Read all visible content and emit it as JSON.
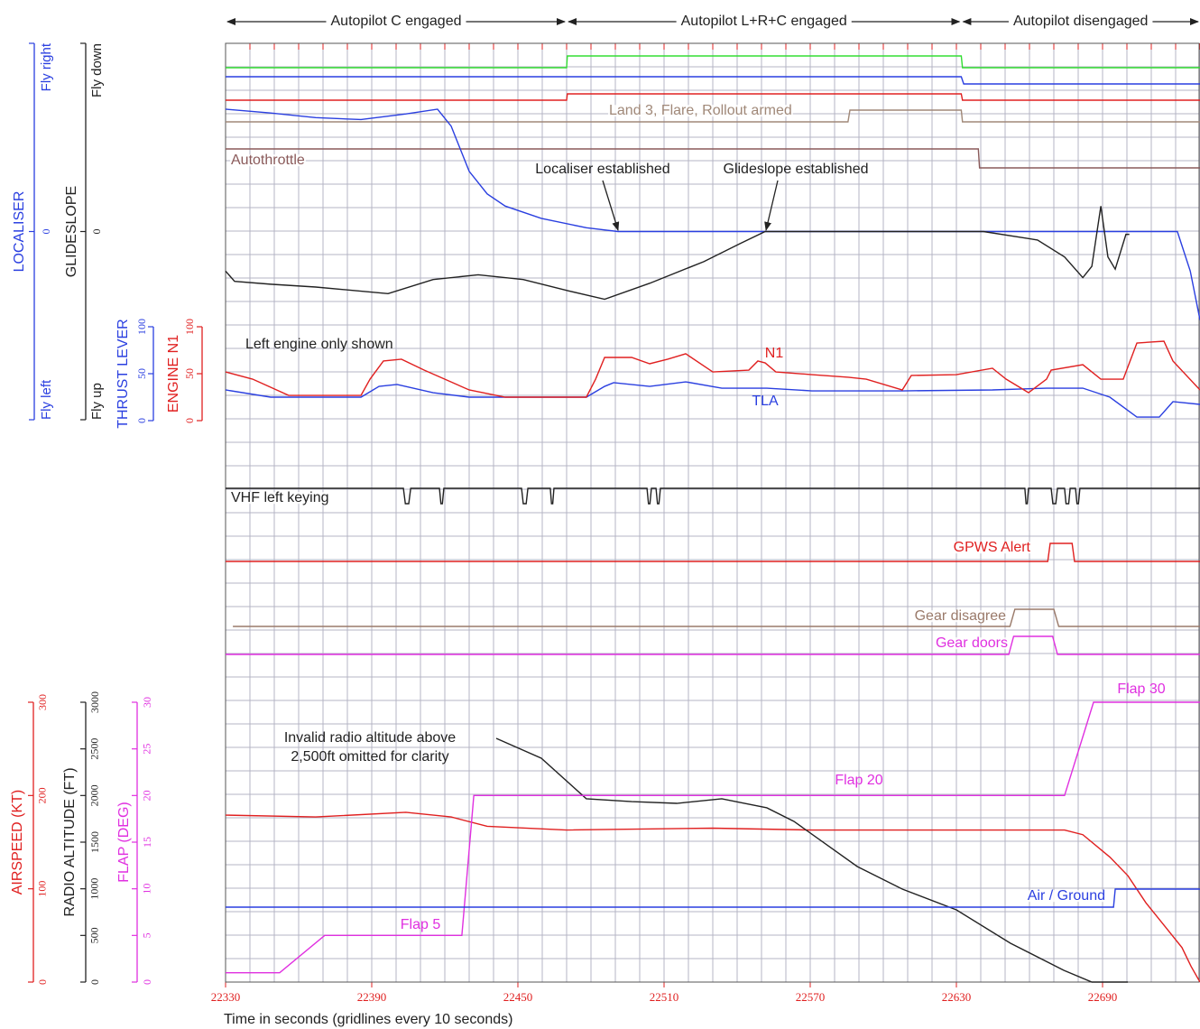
{
  "chart_data": {
    "type": "line",
    "xlabel": "Time in seconds (gridlines every 10 seconds)",
    "xlim": [
      22330,
      22730
    ],
    "xticks": [
      22330,
      22390,
      22450,
      22510,
      22570,
      22630,
      22690
    ],
    "phases": [
      {
        "label": "Autopilot C engaged",
        "start": 22330,
        "end": 22470
      },
      {
        "label": "Autopilot L+R+C engaged",
        "start": 22470,
        "end": 22632
      },
      {
        "label": "Autopilot disengaged",
        "start": 22632,
        "end": 22730
      }
    ],
    "annotations": [
      "Localiser established",
      "Glideslope established",
      "Left engine only shown",
      "Invalid radio altitude above",
      "2,500ft omitted for clarity"
    ],
    "series": [
      {
        "color": "#33dd33",
        "x": [
          22330,
          22470,
          22470.3,
          22632,
          22632.5,
          22730
        ],
        "values": [
          0,
          0,
          1,
          1,
          0,
          0
        ]
      },
      {
        "color": "#2a3fe0",
        "x": [
          22330,
          22632,
          22633,
          22730
        ],
        "values": [
          1,
          1,
          0,
          0
        ]
      },
      {
        "color": "#e02020",
        "x": [
          22330,
          22470,
          22470.3,
          22632,
          22632.5,
          22730
        ],
        "values": [
          0,
          0,
          1,
          1,
          0,
          0
        ]
      },
      {
        "name": "Land 3, Flare, Rollout armed",
        "color": "#a08878",
        "x": [
          22330,
          22585.5,
          22586.3,
          22632,
          22632.5,
          22730
        ],
        "values": [
          0,
          0,
          1,
          1,
          0,
          0
        ]
      },
      {
        "name": "Autothrottle",
        "color": "#8a5a5a",
        "x": [
          22330,
          22639,
          22639.5,
          22730
        ],
        "values": [
          1,
          1,
          0,
          0
        ]
      },
      {
        "name": "LOCALISER",
        "color": "#2a3fe0",
        "ylim": [
          -2,
          2
        ],
        "yticks": [
          {
            "value": -2,
            "label": "Fly left"
          },
          0,
          {
            "value": 2,
            "label": "Fly right"
          }
        ],
        "x": [
          22330,
          22348.5,
          22367,
          22385.6,
          22404.1,
          22417,
          22422.6,
          22430,
          22437.4,
          22444.8,
          22459.6,
          22478.1,
          22491.1,
          22720.7,
          22726,
          22730
        ],
        "values": [
          1.3,
          1.26,
          1.21,
          1.19,
          1.25,
          1.3,
          1.12,
          0.64,
          0.4,
          0.27,
          0.14,
          0.04,
          0,
          0,
          -0.42,
          -0.94
        ]
      },
      {
        "name": "GLIDESLOPE",
        "color": "#222222",
        "ylim": [
          -2,
          2
        ],
        "yticks": [
          {
            "value": -2,
            "label": "Fly up"
          },
          0,
          {
            "value": 2,
            "label": "Fly down"
          }
        ],
        "x": [
          22330,
          22333.7,
          22348.5,
          22367,
          22396.7,
          22415.2,
          22433.7,
          22452.2,
          22470.7,
          22485.6,
          22504.1,
          22526.3,
          22541.1,
          22551.5,
          22641.1,
          22663.3,
          22674.4,
          22681.9,
          22685.6,
          22689.3,
          22692.2,
          22695.2,
          22699.6,
          22701
        ],
        "values": [
          -0.42,
          -0.53,
          -0.56,
          -0.59,
          -0.66,
          -0.51,
          -0.46,
          -0.51,
          -0.63,
          -0.72,
          -0.55,
          -0.32,
          -0.13,
          0,
          0,
          -0.09,
          -0.27,
          -0.49,
          -0.37,
          0.27,
          -0.27,
          -0.4,
          -0.03,
          -0.03
        ]
      },
      {
        "name": "THRUST LEVER",
        "labels": [
          "TLA"
        ],
        "color": "#2a3fe0",
        "ylim": [
          0,
          100
        ],
        "yticks": [
          0,
          50,
          100
        ],
        "x": [
          22330,
          22348.5,
          22385.6,
          22393,
          22400.4,
          22415.2,
          22430,
          22478.1,
          22485.6,
          22489.3,
          22504.1,
          22518.9,
          22533.7,
          22552.2,
          22570.7,
          22607.8,
          22644.8,
          22667,
          22681.9,
          22693,
          22704.1,
          22713.3,
          22718.9,
          22730
        ],
        "values": [
          32.7,
          25,
          25,
          36.5,
          38.5,
          29.8,
          25,
          25,
          36.5,
          40.4,
          36.5,
          41.3,
          34.6,
          34.6,
          31.7,
          31.7,
          32.7,
          34.6,
          34.6,
          25,
          3.8,
          3.8,
          20.2,
          17.3
        ]
      },
      {
        "name": "ENGINE N1",
        "labels": [
          "N1"
        ],
        "color": "#e02020",
        "ylim": [
          0,
          100
        ],
        "yticks": [
          0,
          50,
          100
        ],
        "x": [
          22330,
          22341.1,
          22355.9,
          22385.6,
          22389.3,
          22394.8,
          22402.2,
          22411.5,
          22430,
          22444.8,
          22478.1,
          22481.9,
          22485.6,
          22496.7,
          22504.1,
          22511.5,
          22518.9,
          22530,
          22544.8,
          22548.5,
          22551.5,
          22555.9,
          22570.7,
          22585.6,
          22593,
          22607.8,
          22611.5,
          22630,
          22644.8,
          22650.4,
          22659.6,
          22667,
          22668.9,
          22681.9,
          22689.3,
          22698.5,
          22704.1,
          22715.2,
          22718.9,
          22730
        ],
        "values": [
          51.9,
          44.2,
          26.9,
          26.9,
          44.2,
          63.5,
          65.4,
          53.8,
          32.7,
          25,
          25,
          44.2,
          67.3,
          67.3,
          60.6,
          65.4,
          71.2,
          51.9,
          53.8,
          63.5,
          61.5,
          51.9,
          49,
          46.2,
          44.2,
          32.7,
          48.1,
          49,
          55.8,
          44.2,
          29.8,
          44.2,
          53.8,
          59.6,
          44.2,
          44.2,
          82.7,
          84.6,
          63.5,
          32.7
        ]
      },
      {
        "name": "VHF left keying",
        "color": "#222222",
        "x": [
          22330,
          22403,
          22403.8,
          22405.2,
          22406,
          22417.8,
          22418.4,
          22419,
          22419.6,
          22451.5,
          22452.2,
          22453.4,
          22454.1,
          22463.3,
          22463.8,
          22464.3,
          22464.8,
          22503,
          22503.6,
          22504.2,
          22504.8,
          22506.7,
          22507.3,
          22507.9,
          22508.5,
          22658.1,
          22658.6,
          22659.1,
          22659.6,
          22668.9,
          22669.6,
          22670.8,
          22671.5,
          22674.4,
          22675,
          22676.1,
          22676.7,
          22678.9,
          22679.5,
          22680.1,
          22680.7,
          22730
        ],
        "values": [
          1,
          1,
          0,
          0,
          1,
          1,
          0,
          0,
          1,
          1,
          0,
          0,
          1,
          1,
          0,
          0,
          1,
          1,
          0,
          0,
          1,
          1,
          0,
          0,
          1,
          1,
          0,
          0,
          1,
          1,
          0,
          0,
          1,
          1,
          0,
          0,
          1,
          1,
          0,
          0,
          1,
          1
        ]
      },
      {
        "name": "GPWS Alert",
        "color": "#e02020",
        "x": [
          22330,
          22667.5,
          22668.5,
          22677.5,
          22678.5,
          22730
        ],
        "values": [
          0,
          0,
          1,
          1,
          0,
          0
        ]
      },
      {
        "name": "Gear disagree",
        "color": "#9a7a6a",
        "x": [
          22333,
          22652,
          22654,
          22670,
          22672,
          22730
        ],
        "values": [
          0,
          0,
          1,
          1,
          0,
          0
        ]
      },
      {
        "name": "Gear doors",
        "color": "#e030e0",
        "x": [
          22330,
          22651.5,
          22653.5,
          22669.5,
          22671.5,
          22730
        ],
        "values": [
          0,
          0,
          1,
          1,
          0,
          0
        ]
      },
      {
        "name": "AIRSPEED (KT)",
        "color": "#e02020",
        "ylim": [
          0,
          300
        ],
        "yticks": [
          0,
          100,
          200,
          300
        ],
        "x": [
          22330,
          22367,
          22404,
          22422.6,
          22437.4,
          22470,
          22530,
          22570.7,
          22630,
          22674.4,
          22681.9,
          22693,
          22700.4,
          22707.8,
          22715.2,
          22722.6,
          22726.3,
          22730
        ],
        "values": [
          179,
          177,
          182,
          177,
          167,
          163,
          165,
          163,
          163,
          163,
          158,
          134,
          114,
          85,
          61,
          37,
          17,
          0
        ]
      },
      {
        "name": "RADIO ALTITUDE (FT)",
        "color": "#222222",
        "ylim": [
          0,
          3000
        ],
        "yticks": [
          0,
          500,
          1000,
          1500,
          2000,
          2500,
          3000
        ],
        "x": [
          22441.1,
          22459.6,
          22478.1,
          22496.7,
          22515.2,
          22533.7,
          22552.2,
          22563.3,
          22589.3,
          22607.8,
          22630,
          22652.2,
          22674.1,
          22685.6,
          22700.4
        ],
        "values": [
          2613,
          2400,
          1965,
          1935,
          1916,
          1965,
          1868,
          1723,
          1239,
          997,
          774,
          416,
          126,
          0,
          0
        ]
      },
      {
        "name": "FLAP (DEG)",
        "labels": [
          "Flap 5",
          "Flap 20",
          "Flap 30"
        ],
        "color": "#e030e0",
        "ylim": [
          0,
          30
        ],
        "yticks": [
          0,
          5,
          10,
          15,
          20,
          25,
          30
        ],
        "x": [
          22330,
          22352.2,
          22370.7,
          22427,
          22431.9,
          22674.4,
          22686.3,
          22730
        ],
        "values": [
          1,
          1,
          5,
          5,
          20,
          20,
          30,
          30
        ]
      },
      {
        "name": "Air / Ground",
        "color": "#2a3fe0",
        "x": [
          22330,
          22694.5,
          22695.2,
          22730
        ],
        "values": [
          0,
          0,
          1,
          1
        ]
      }
    ]
  }
}
